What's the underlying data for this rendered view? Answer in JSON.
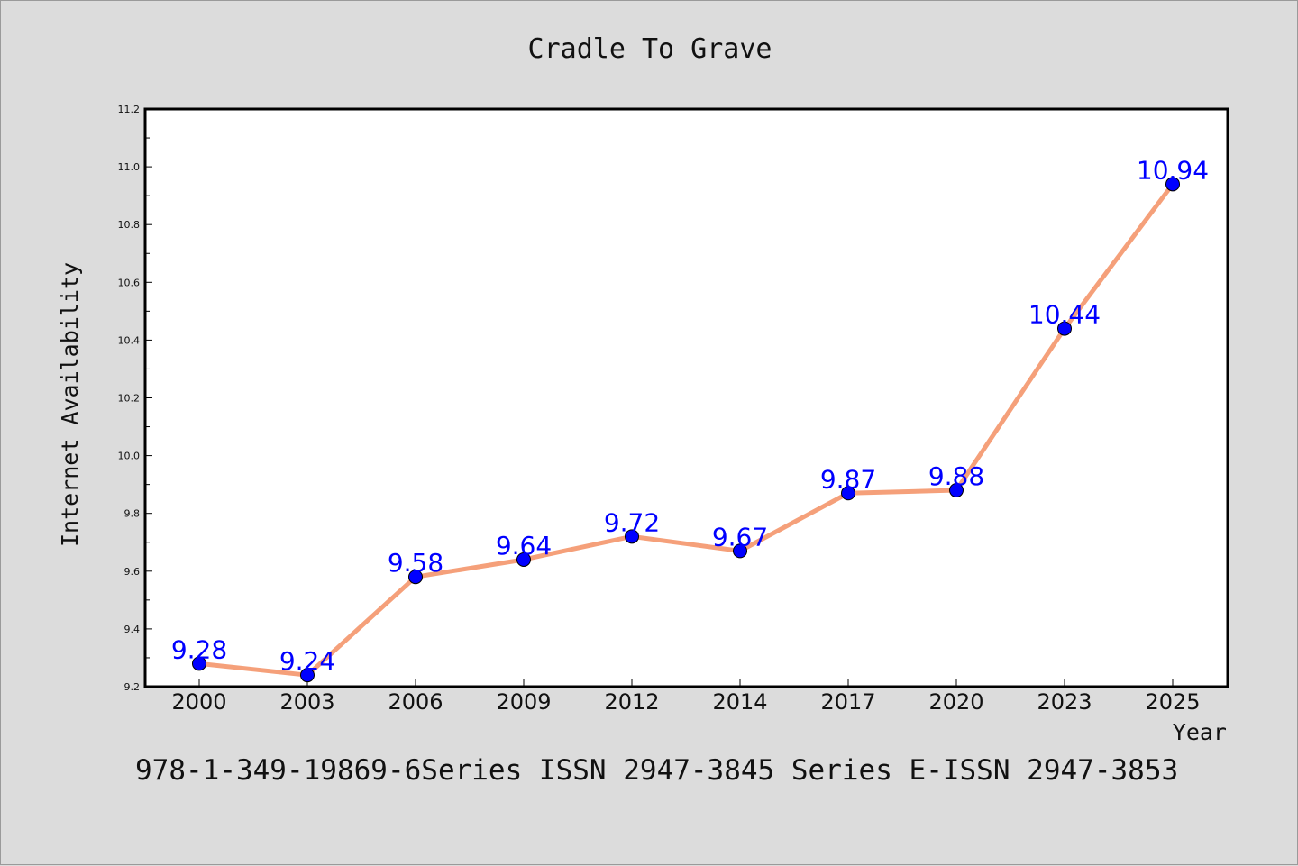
{
  "colors": {
    "background": "#dcdcdc",
    "plot_background": "#ffffff",
    "line": "#f5a07a",
    "marker": "#0000ff",
    "label": "#0000ff",
    "text": "#111111"
  },
  "footer_text": "978-1-349-19869-6Series ISSN 2947-3845 Series E-ISSN 2947-3853",
  "chart_data": {
    "type": "line",
    "title": "Cradle To Grave",
    "xlabel": "Year",
    "ylabel": "Internet Availability",
    "categories": [
      "2000",
      "2003",
      "2006",
      "2009",
      "2012",
      "2014",
      "2017",
      "2020",
      "2023",
      "2025"
    ],
    "series": [
      {
        "values": [
          9.28,
          9.24,
          9.58,
          9.64,
          9.72,
          9.67,
          9.87,
          9.88,
          10.44,
          10.94
        ],
        "labels": [
          "9.28",
          "9.24",
          "9.58",
          "9.64",
          "9.72",
          "9.67",
          "9.87",
          "9.88",
          "10.44",
          "10.94"
        ]
      }
    ],
    "ylim": [
      9.2,
      11.2
    ],
    "yticks": [
      "9.2",
      "9.4",
      "9.6",
      "9.8",
      "10.0",
      "10.2",
      "10.4",
      "10.6",
      "10.8",
      "11.0",
      "11.2"
    ],
    "grid": false,
    "legend": "none"
  }
}
